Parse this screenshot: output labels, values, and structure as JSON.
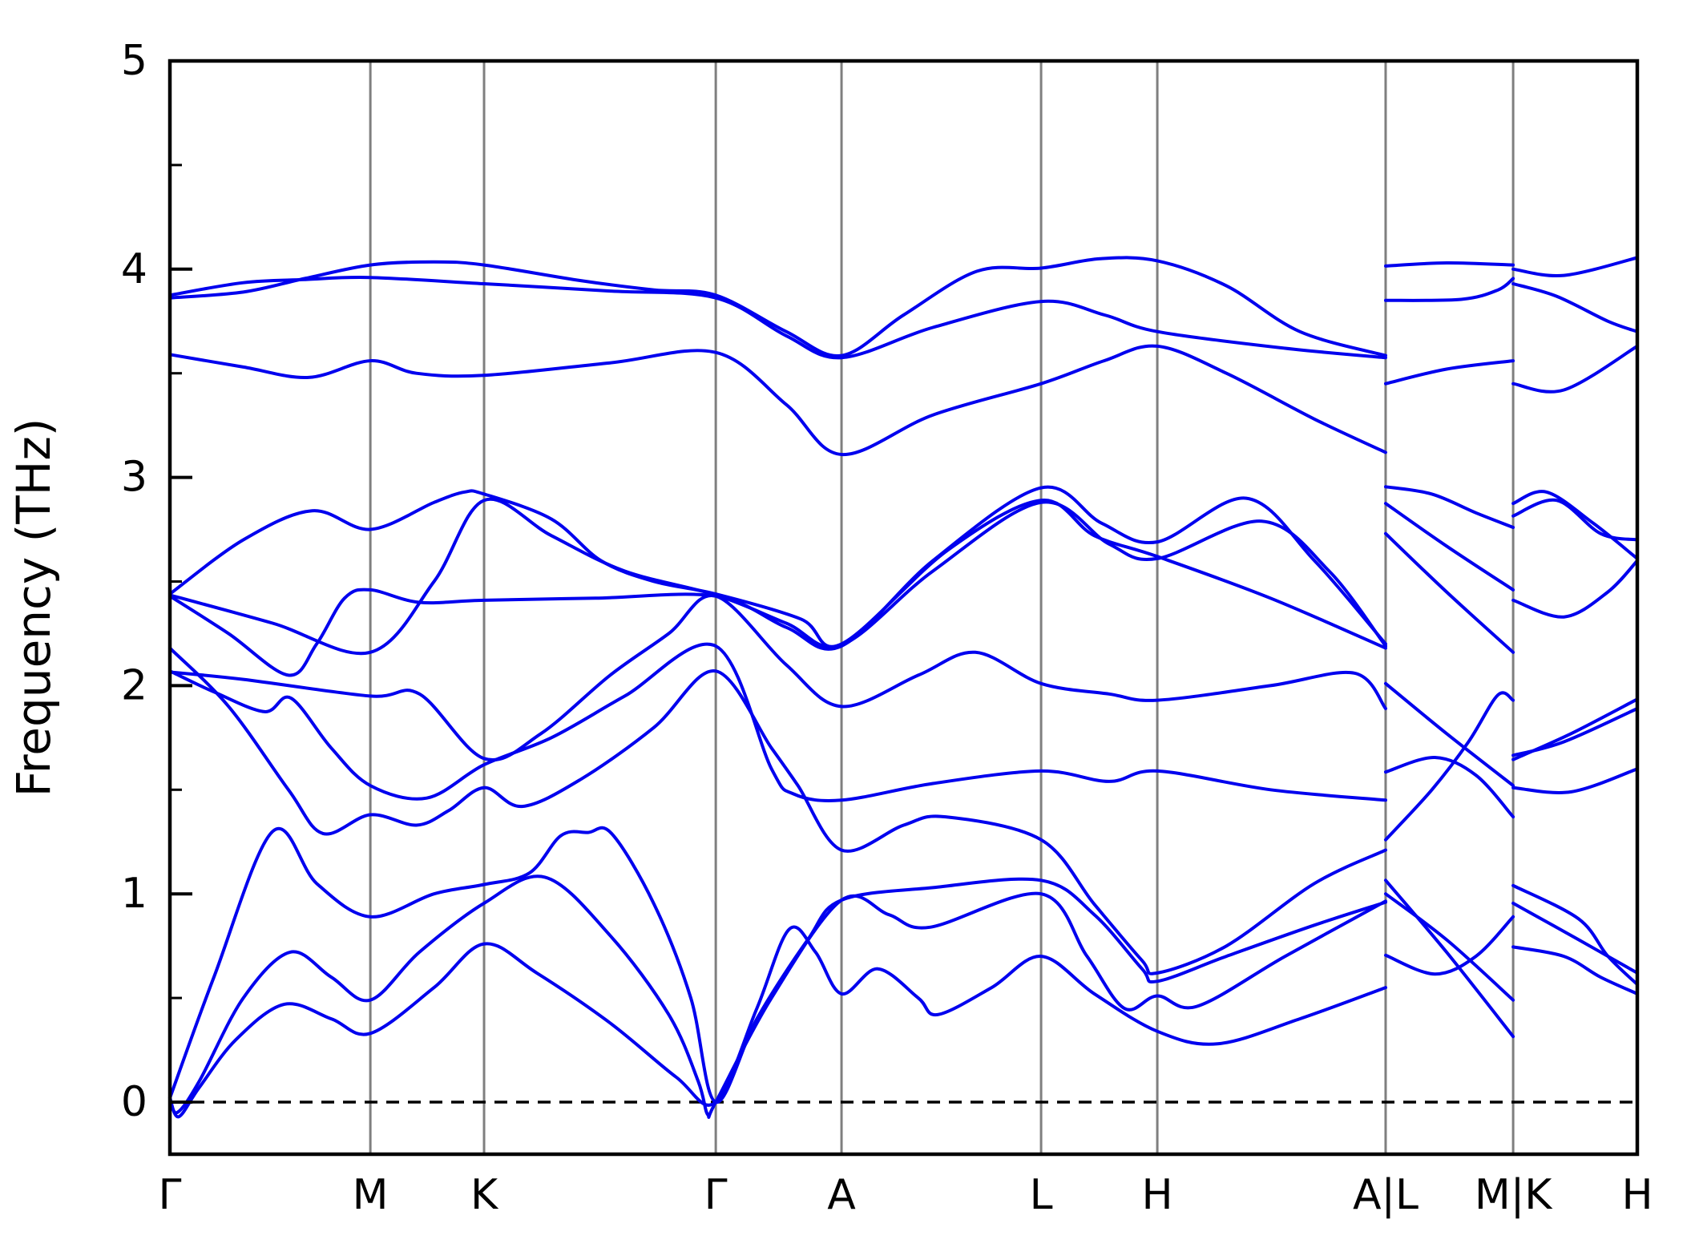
{
  "chart_data": {
    "type": "line",
    "title": "",
    "xlabel": "",
    "ylabel": "Frequency (THz)",
    "ylim": [
      -0.35,
      5
    ],
    "yticks": [
      0,
      1,
      2,
      3,
      4,
      5
    ],
    "ytick_labels": [
      "0",
      "1",
      "2",
      "3",
      "4",
      "5"
    ],
    "yminor_step": 0.5,
    "grid": "vertical-at-kpoints",
    "legend": "none",
    "zero_line": {
      "value": 0,
      "style": "dashed",
      "color": "#000000"
    },
    "line_color": "#0000ee",
    "gridline_color": "#7f7f7f",
    "axis_color": "#000000",
    "k_points": [
      {
        "label": "Γ",
        "pos": 0.0
      },
      {
        "label": "M",
        "pos": 0.1366
      },
      {
        "label": "K",
        "pos": 0.2141
      },
      {
        "label": "Γ",
        "pos": 0.372
      },
      {
        "label": "A",
        "pos": 0.4577
      },
      {
        "label": "L",
        "pos": 0.5937
      },
      {
        "label": "H",
        "pos": 0.6729
      },
      {
        "label": "A|L",
        "pos": 0.8285
      },
      {
        "label": "M|K",
        "pos": 0.9154
      },
      {
        "label": "H",
        "pos": 1.0
      }
    ],
    "bands_units": "points are [k-path fraction, frequency THz]",
    "bands": [
      [
        [
          0,
          0.02
        ],
        [
          0.006,
          -0.07
        ],
        [
          0.02,
          0.07
        ],
        [
          0.045,
          0.3
        ],
        [
          0.078,
          0.47
        ],
        [
          0.11,
          0.4
        ],
        [
          0.1366,
          0.33
        ],
        [
          0.18,
          0.55
        ],
        [
          0.2141,
          0.76
        ],
        [
          0.25,
          0.62
        ],
        [
          0.3,
          0.38
        ],
        [
          0.345,
          0.12
        ],
        [
          0.372,
          0.0
        ],
        [
          0.4,
          0.45
        ],
        [
          0.422,
          0.83
        ],
        [
          0.44,
          0.72
        ],
        [
          0.4577,
          0.52
        ],
        [
          0.4823,
          0.64
        ],
        [
          0.51,
          0.5
        ],
        [
          0.5232,
          0.42
        ],
        [
          0.56,
          0.55
        ],
        [
          0.5937,
          0.7
        ],
        [
          0.63,
          0.52
        ],
        [
          0.6729,
          0.34
        ],
        [
          0.714,
          0.28
        ],
        [
          0.77,
          0.4
        ],
        [
          0.8285,
          0.55
        ]
      ],
      [
        [
          0,
          0.02
        ],
        [
          0.005,
          -0.05
        ],
        [
          0.02,
          0.1
        ],
        [
          0.05,
          0.5
        ],
        [
          0.082,
          0.72
        ],
        [
          0.11,
          0.6
        ],
        [
          0.1366,
          0.49
        ],
        [
          0.17,
          0.72
        ],
        [
          0.2141,
          0.955
        ],
        [
          0.2556,
          1.08
        ],
        [
          0.3,
          0.8
        ],
        [
          0.34,
          0.42
        ],
        [
          0.36,
          0.1
        ],
        [
          0.3665,
          -0.06
        ],
        [
          0.372,
          0.0
        ],
        [
          0.41,
          0.5
        ],
        [
          0.4577,
          0.97
        ],
        [
          0.49,
          0.9
        ],
        [
          0.518,
          0.84
        ],
        [
          0.5937,
          1.0
        ],
        [
          0.625,
          0.7
        ],
        [
          0.6505,
          0.45
        ],
        [
          0.6729,
          0.51
        ],
        [
          0.7,
          0.46
        ],
        [
          0.76,
          0.7
        ],
        [
          0.8285,
          0.965
        ]
      ],
      [
        [
          0,
          0.02
        ],
        [
          0.03,
          0.6
        ],
        [
          0.07,
          1.3
        ],
        [
          0.1,
          1.05
        ],
        [
          0.1366,
          0.89
        ],
        [
          0.18,
          1.0
        ],
        [
          0.2141,
          1.045
        ],
        [
          0.245,
          1.1
        ],
        [
          0.2665,
          1.28
        ],
        [
          0.285,
          1.295
        ],
        [
          0.301,
          1.29
        ],
        [
          0.33,
          0.95
        ],
        [
          0.355,
          0.5
        ],
        [
          0.372,
          0.0
        ],
        [
          0.4,
          0.4
        ],
        [
          0.4347,
          0.78
        ],
        [
          0.4577,
          0.97
        ],
        [
          0.52,
          1.03
        ],
        [
          0.5937,
          1.065
        ],
        [
          0.63,
          0.9
        ],
        [
          0.6625,
          0.64
        ],
        [
          0.6729,
          0.58
        ],
        [
          0.72,
          0.7
        ],
        [
          0.78,
          0.85
        ],
        [
          0.8285,
          0.96
        ]
      ],
      [
        [
          0,
          2.18
        ],
        [
          0.04,
          1.9
        ],
        [
          0.0808,
          1.5
        ],
        [
          0.1043,
          1.29
        ],
        [
          0.1366,
          1.38
        ],
        [
          0.168,
          1.33
        ],
        [
          0.19,
          1.4
        ],
        [
          0.2141,
          1.51
        ],
        [
          0.24,
          1.42
        ],
        [
          0.28,
          1.55
        ],
        [
          0.33,
          1.8
        ],
        [
          0.372,
          2.07
        ],
        [
          0.41,
          1.7
        ],
        [
          0.428,
          1.52
        ],
        [
          0.4577,
          1.21
        ],
        [
          0.5,
          1.33
        ],
        [
          0.5287,
          1.37
        ],
        [
          0.5937,
          1.26
        ],
        [
          0.63,
          0.95
        ],
        [
          0.6625,
          0.68
        ],
        [
          0.6729,
          0.62
        ],
        [
          0.72,
          0.75
        ],
        [
          0.78,
          1.05
        ],
        [
          0.8285,
          1.21
        ]
      ],
      [
        [
          0,
          2.07
        ],
        [
          0.03,
          1.97
        ],
        [
          0.0645,
          1.875
        ],
        [
          0.0825,
          1.94
        ],
        [
          0.11,
          1.7
        ],
        [
          0.1366,
          1.52
        ],
        [
          0.175,
          1.46
        ],
        [
          0.2141,
          1.62
        ],
        [
          0.26,
          1.75
        ],
        [
          0.31,
          1.95
        ],
        [
          0.372,
          2.19
        ],
        [
          0.41,
          1.6
        ],
        [
          0.425,
          1.48
        ],
        [
          0.4577,
          1.45
        ],
        [
          0.52,
          1.53
        ],
        [
          0.5937,
          1.59
        ],
        [
          0.64,
          1.54
        ],
        [
          0.6729,
          1.59
        ],
        [
          0.75,
          1.5
        ],
        [
          0.8285,
          1.45
        ]
      ],
      [
        [
          0,
          2.065
        ],
        [
          0.05,
          2.03
        ],
        [
          0.1366,
          1.95
        ],
        [
          0.17,
          1.96
        ],
        [
          0.2141,
          1.65
        ],
        [
          0.2529,
          1.77
        ],
        [
          0.3,
          2.05
        ],
        [
          0.34,
          2.25
        ],
        [
          0.372,
          2.43
        ],
        [
          0.42,
          2.1
        ],
        [
          0.4577,
          1.9
        ],
        [
          0.51,
          2.05
        ],
        [
          0.5489,
          2.16
        ],
        [
          0.5937,
          2.01
        ],
        [
          0.64,
          1.96
        ],
        [
          0.6729,
          1.93
        ],
        [
          0.75,
          2.0
        ],
        [
          0.8072,
          2.06
        ],
        [
          0.8285,
          1.89
        ]
      ],
      [
        [
          0,
          2.43
        ],
        [
          0.04,
          2.25
        ],
        [
          0.0808,
          2.05
        ],
        [
          0.1,
          2.2
        ],
        [
          0.119,
          2.42
        ],
        [
          0.1366,
          2.46
        ],
        [
          0.17,
          2.4
        ],
        [
          0.2141,
          2.41
        ],
        [
          0.29,
          2.42
        ],
        [
          0.372,
          2.43
        ],
        [
          0.42,
          2.28
        ],
        [
          0.4577,
          2.19
        ],
        [
          0.52,
          2.6
        ],
        [
          0.5937,
          2.95
        ],
        [
          0.635,
          2.78
        ],
        [
          0.6729,
          2.69
        ],
        [
          0.7335,
          2.9
        ],
        [
          0.78,
          2.6
        ],
        [
          0.8285,
          2.2
        ]
      ],
      [
        [
          0,
          2.435
        ],
        [
          0.07,
          2.3
        ],
        [
          0.1366,
          2.16
        ],
        [
          0.18,
          2.5
        ],
        [
          0.2141,
          2.89
        ],
        [
          0.26,
          2.72
        ],
        [
          0.31,
          2.55
        ],
        [
          0.372,
          2.435
        ],
        [
          0.42,
          2.3
        ],
        [
          0.4577,
          2.195
        ],
        [
          0.52,
          2.55
        ],
        [
          0.5937,
          2.88
        ],
        [
          0.64,
          2.68
        ],
        [
          0.6729,
          2.61
        ],
        [
          0.744,
          2.79
        ],
        [
          0.79,
          2.55
        ],
        [
          0.8285,
          2.19
        ]
      ],
      [
        [
          0,
          2.44
        ],
        [
          0.05,
          2.7
        ],
        [
          0.097,
          2.84
        ],
        [
          0.1366,
          2.75
        ],
        [
          0.18,
          2.88
        ],
        [
          0.201,
          2.93
        ],
        [
          0.2141,
          2.92
        ],
        [
          0.26,
          2.8
        ],
        [
          0.2938,
          2.6
        ],
        [
          0.33,
          2.5
        ],
        [
          0.372,
          2.44
        ],
        [
          0.43,
          2.32
        ],
        [
          0.4577,
          2.2
        ],
        [
          0.53,
          2.65
        ],
        [
          0.5937,
          2.89
        ],
        [
          0.63,
          2.72
        ],
        [
          0.6729,
          2.62
        ],
        [
          0.75,
          2.42
        ],
        [
          0.8285,
          2.18
        ]
      ],
      [
        [
          0,
          3.59
        ],
        [
          0.05,
          3.53
        ],
        [
          0.0945,
          3.48
        ],
        [
          0.1366,
          3.56
        ],
        [
          0.168,
          3.5
        ],
        [
          0.2141,
          3.49
        ],
        [
          0.3,
          3.55
        ],
        [
          0.372,
          3.6
        ],
        [
          0.42,
          3.35
        ],
        [
          0.4577,
          3.11
        ],
        [
          0.52,
          3.3
        ],
        [
          0.5937,
          3.45
        ],
        [
          0.6366,
          3.56
        ],
        [
          0.6729,
          3.63
        ],
        [
          0.72,
          3.5
        ],
        [
          0.78,
          3.28
        ],
        [
          0.8285,
          3.12
        ]
      ],
      [
        [
          0,
          3.862
        ],
        [
          0.05,
          3.89
        ],
        [
          0.0918,
          3.955
        ],
        [
          0.1366,
          4.02
        ],
        [
          0.18,
          4.035
        ],
        [
          0.2141,
          4.02
        ],
        [
          0.28,
          3.945
        ],
        [
          0.33,
          3.9
        ],
        [
          0.372,
          3.875
        ],
        [
          0.42,
          3.7
        ],
        [
          0.4577,
          3.585
        ],
        [
          0.5,
          3.78
        ],
        [
          0.55,
          3.99
        ],
        [
          0.5937,
          4.005
        ],
        [
          0.634,
          4.05
        ],
        [
          0.6729,
          4.04
        ],
        [
          0.72,
          3.92
        ],
        [
          0.77,
          3.7
        ],
        [
          0.8285,
          3.585
        ]
      ],
      [
        [
          0,
          3.875
        ],
        [
          0.05,
          3.935
        ],
        [
          0.0918,
          3.95
        ],
        [
          0.1366,
          3.96
        ],
        [
          0.2141,
          3.93
        ],
        [
          0.3,
          3.895
        ],
        [
          0.372,
          3.862
        ],
        [
          0.42,
          3.68
        ],
        [
          0.4577,
          3.575
        ],
        [
          0.52,
          3.72
        ],
        [
          0.5937,
          3.845
        ],
        [
          0.637,
          3.78
        ],
        [
          0.6729,
          3.7
        ],
        [
          0.76,
          3.62
        ],
        [
          0.8285,
          3.575
        ]
      ],
      [
        [
          0.8285,
          0.705
        ],
        [
          0.862,
          0.615
        ],
        [
          0.89,
          0.7
        ],
        [
          0.9154,
          0.89
        ]
      ],
      [
        [
          0.8285,
          1.0
        ],
        [
          0.87,
          0.78
        ],
        [
          0.9154,
          0.49
        ]
      ],
      [
        [
          0.8285,
          1.065
        ],
        [
          0.87,
          0.72
        ],
        [
          0.9154,
          0.315
        ]
      ],
      [
        [
          0.8285,
          1.26
        ],
        [
          0.86,
          1.5
        ],
        [
          0.885,
          1.73
        ],
        [
          0.905,
          1.955
        ],
        [
          0.9154,
          1.93
        ]
      ],
      [
        [
          0.8285,
          1.585
        ],
        [
          0.862,
          1.655
        ],
        [
          0.89,
          1.57
        ],
        [
          0.9154,
          1.37
        ]
      ],
      [
        [
          0.8285,
          2.01
        ],
        [
          0.87,
          1.77
        ],
        [
          0.9154,
          1.52
        ]
      ],
      [
        [
          0.8285,
          2.73
        ],
        [
          0.87,
          2.45
        ],
        [
          0.9154,
          2.16
        ]
      ],
      [
        [
          0.8285,
          2.955
        ],
        [
          0.86,
          2.92
        ],
        [
          0.89,
          2.83
        ],
        [
          0.9154,
          2.76
        ]
      ],
      [
        [
          0.8285,
          2.875
        ],
        [
          0.87,
          2.67
        ],
        [
          0.9154,
          2.46
        ]
      ],
      [
        [
          0.8285,
          3.45
        ],
        [
          0.87,
          3.52
        ],
        [
          0.9154,
          3.56
        ]
      ],
      [
        [
          0.8285,
          4.015
        ],
        [
          0.87,
          4.03
        ],
        [
          0.9154,
          4.02
        ]
      ],
      [
        [
          0.8285,
          3.85
        ],
        [
          0.88,
          3.855
        ],
        [
          0.905,
          3.9
        ],
        [
          0.9154,
          3.955
        ]
      ],
      [
        [
          0.9154,
          0.745
        ],
        [
          0.95,
          0.7
        ],
        [
          0.975,
          0.6
        ],
        [
          1,
          0.52
        ]
      ],
      [
        [
          0.9154,
          0.955
        ],
        [
          0.96,
          0.78
        ],
        [
          1,
          0.62
        ]
      ],
      [
        [
          0.9154,
          1.04
        ],
        [
          0.96,
          0.88
        ],
        [
          0.98,
          0.7
        ],
        [
          1,
          0.565
        ]
      ],
      [
        [
          0.9154,
          1.51
        ],
        [
          0.955,
          1.49
        ],
        [
          1,
          1.6
        ]
      ],
      [
        [
          0.9154,
          1.645
        ],
        [
          0.955,
          1.77
        ],
        [
          1,
          1.935
        ]
      ],
      [
        [
          0.9154,
          1.665
        ],
        [
          0.95,
          1.73
        ],
        [
          1,
          1.89
        ]
      ],
      [
        [
          0.9154,
          2.875
        ],
        [
          0.938,
          2.93
        ],
        [
          0.97,
          2.78
        ],
        [
          1,
          2.61
        ]
      ],
      [
        [
          0.9154,
          2.815
        ],
        [
          0.945,
          2.89
        ],
        [
          0.975,
          2.73
        ],
        [
          1,
          2.7
        ]
      ],
      [
        [
          0.9154,
          2.41
        ],
        [
          0.95,
          2.33
        ],
        [
          0.98,
          2.45
        ],
        [
          1,
          2.6
        ]
      ],
      [
        [
          0.9154,
          3.45
        ],
        [
          0.95,
          3.42
        ],
        [
          1,
          3.63
        ]
      ],
      [
        [
          0.9154,
          4.0
        ],
        [
          0.95,
          3.97
        ],
        [
          1,
          4.055
        ]
      ],
      [
        [
          0.9154,
          3.93
        ],
        [
          0.945,
          3.87
        ],
        [
          0.98,
          3.75
        ],
        [
          1,
          3.7
        ]
      ]
    ]
  }
}
